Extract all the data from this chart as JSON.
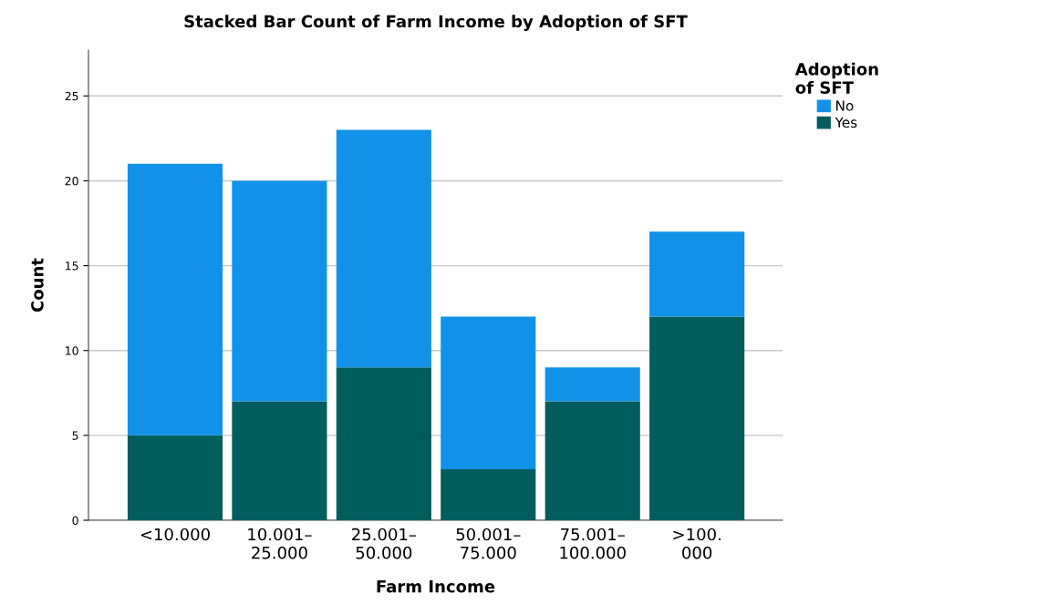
{
  "chart_data": {
    "type": "bar",
    "title": "Stacked Bar Count of Farm Income by Adoption of SFT",
    "xlabel": "Farm Income",
    "ylabel": "Count",
    "legend_title": "Adoption\nof SFT",
    "categories": [
      "<10.000",
      "10.001–\n25.000",
      "25.001–\n50.000",
      "50.001–\n75.000",
      "75.001–\n100.000",
      ">100.\n000"
    ],
    "stacked": true,
    "series": [
      {
        "name": "Yes",
        "color": "#005d5d",
        "values": [
          5,
          7,
          9,
          3,
          7,
          12
        ]
      },
      {
        "name": "No",
        "color": "#1192e8",
        "values": [
          16,
          13,
          14,
          9,
          2,
          5
        ]
      }
    ],
    "ylim": [
      0,
      27.7
    ],
    "yticks": [
      0,
      5,
      10,
      15,
      20,
      25
    ],
    "grid": "y",
    "legend": "top right"
  }
}
